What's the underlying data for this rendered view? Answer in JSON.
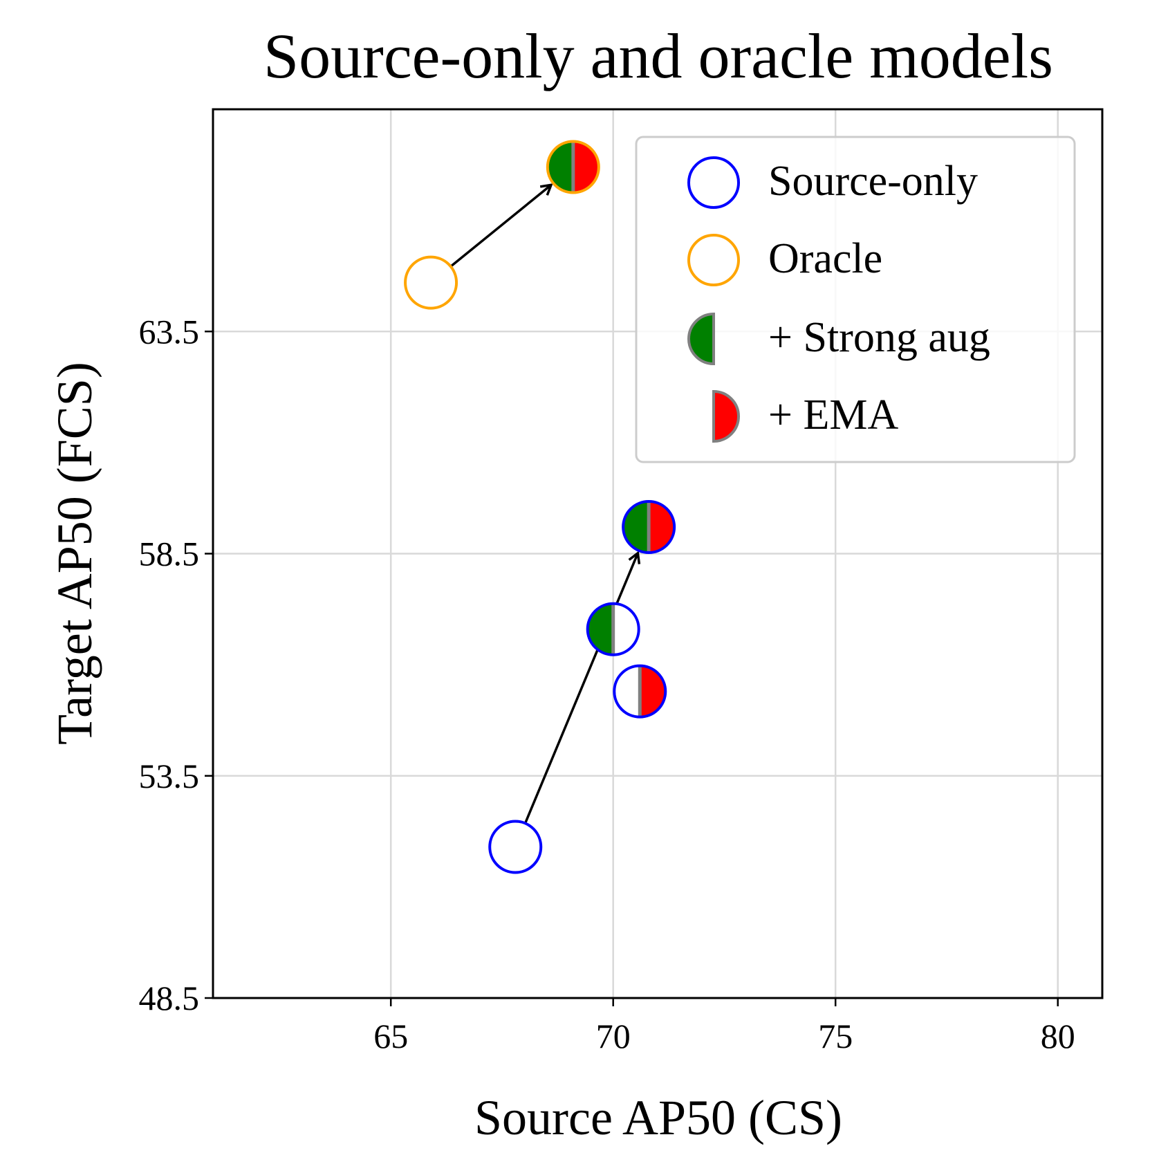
{
  "chart_data": {
    "type": "scatter",
    "title": "Source-only and oracle models",
    "xlabel": "Source AP50 (CS)",
    "ylabel": "Target AP50 (FCS)",
    "xlim": [
      61,
      81
    ],
    "ylim": [
      48.5,
      68.5
    ],
    "xticks": [
      65,
      70,
      75,
      80
    ],
    "xtick_labels": [
      "65",
      "70",
      "75",
      "80"
    ],
    "yticks": [
      48.5,
      53.5,
      58.5,
      63.5
    ],
    "ytick_labels": [
      "48.5",
      "53.5",
      "58.5",
      "63.5"
    ],
    "grid": true,
    "legend_position": "top-right",
    "legend": [
      {
        "label": "Source-only",
        "marker": "open-circle",
        "edge": "#0000ff"
      },
      {
        "label": "Oracle",
        "marker": "open-circle",
        "edge": "#ffa500"
      },
      {
        "label": "+ Strong aug",
        "marker": "left-half",
        "fill": "#008000",
        "edge": "#808080"
      },
      {
        "label": "+ EMA",
        "marker": "right-half",
        "fill": "#ff0000",
        "edge": "#808080"
      }
    ],
    "points": [
      {
        "model": "Source-only",
        "variant": "baseline",
        "x": 67.8,
        "y": 51.9,
        "edge": "#0000ff",
        "left": null,
        "right": null
      },
      {
        "model": "Source-only",
        "variant": "+ Strong aug",
        "x": 70.0,
        "y": 56.8,
        "edge": "#0000ff",
        "left": "#008000",
        "right": null
      },
      {
        "model": "Source-only",
        "variant": "+ EMA",
        "x": 70.6,
        "y": 55.4,
        "edge": "#0000ff",
        "left": null,
        "right": "#ff0000"
      },
      {
        "model": "Source-only",
        "variant": "+ Strong aug + EMA",
        "x": 70.8,
        "y": 59.1,
        "edge": "#0000ff",
        "left": "#008000",
        "right": "#ff0000"
      },
      {
        "model": "Oracle",
        "variant": "baseline",
        "x": 65.9,
        "y": 64.6,
        "edge": "#ffa500",
        "left": null,
        "right": null
      },
      {
        "model": "Oracle",
        "variant": "+ Strong aug + EMA",
        "x": 69.1,
        "y": 67.2,
        "edge": "#ffa500",
        "left": "#008000",
        "right": "#ff0000"
      }
    ],
    "arrows": [
      {
        "from": [
          67.8,
          51.9
        ],
        "to": [
          70.8,
          59.1
        ]
      },
      {
        "from": [
          65.9,
          64.6
        ],
        "to": [
          69.1,
          67.2
        ]
      }
    ]
  }
}
